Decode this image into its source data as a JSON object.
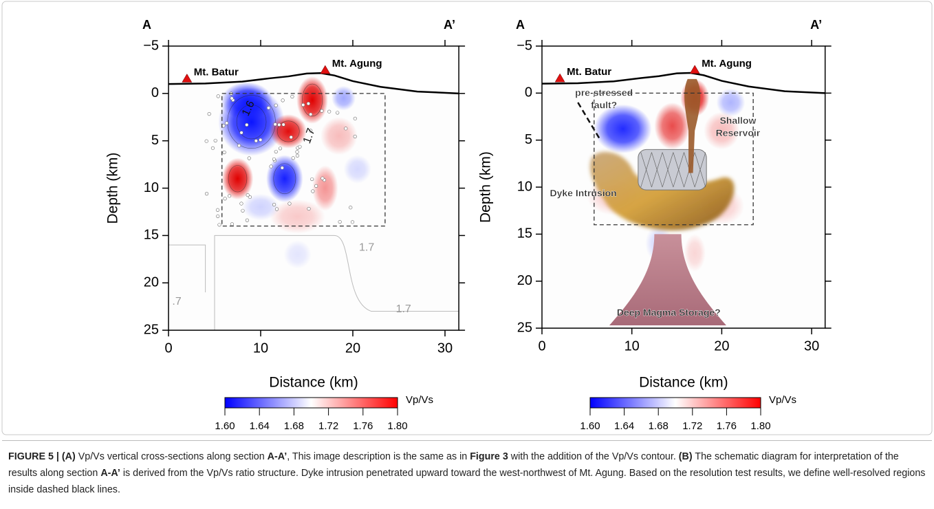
{
  "panels": [
    {
      "section_start": "A",
      "section_end": "A’",
      "y_label": "Depth (km)",
      "x_label": "Distance (km)",
      "xlim": [
        0,
        31.5
      ],
      "ylim": [
        -5,
        25
      ],
      "xticks": [
        0,
        10,
        20,
        30
      ],
      "yticks": [
        {
          "value": -5,
          "label": "−5"
        },
        0,
        5,
        10,
        15,
        20,
        25
      ],
      "volcanoes": [
        "Mt. Batur",
        "Mt. Agung"
      ],
      "contour_labels": [
        "1.6",
        "1.7",
        "1.7",
        "1.7",
        ".7"
      ],
      "annotations": [],
      "colorbar": {
        "label": "Vp/Vs",
        "ticks": [
          {
            "value": 1.6,
            "label": "1.60"
          },
          {
            "value": 1.64,
            "label": "1.64"
          },
          {
            "value": 1.68,
            "label": "1.68"
          },
          {
            "value": 1.72,
            "label": "1.72"
          },
          {
            "value": 1.76,
            "label": "1.76"
          },
          {
            "value": 1.8,
            "label": "1.80"
          }
        ]
      }
    },
    {
      "section_start": "A",
      "section_end": "A’",
      "y_label": "Depth (km)",
      "x_label": "Distance (km)",
      "xlim": [
        0,
        31.5
      ],
      "ylim": [
        -5,
        25
      ],
      "xticks": [
        0,
        10,
        20,
        30
      ],
      "yticks": [
        {
          "value": -5,
          "label": "−5"
        },
        0,
        5,
        10,
        15,
        20,
        25
      ],
      "volcanoes": [
        "Mt. Batur",
        "Mt. Agung"
      ],
      "contour_labels": [],
      "annotations": [
        {
          "lines": [
            "pre-stressed",
            "fault?"
          ]
        },
        {
          "lines": [
            "Shallow",
            "Reservoir"
          ]
        },
        {
          "lines": [
            "Dyke Intrusion"
          ]
        },
        {
          "lines": [
            "Deep Magma Storage?"
          ]
        }
      ],
      "colorbar": {
        "label": "Vp/Vs",
        "ticks": [
          {
            "value": 1.6,
            "label": "1.60"
          },
          {
            "value": 1.64,
            "label": "1.64"
          },
          {
            "value": 1.68,
            "label": "1.68"
          },
          {
            "value": 1.72,
            "label": "1.72"
          },
          {
            "value": 1.76,
            "label": "1.76"
          },
          {
            "value": 1.8,
            "label": "1.80"
          }
        ]
      }
    }
  ],
  "caption": [
    {
      "text": "FIGURE 5 | (A)",
      "bold": true
    },
    {
      "text": " Vp/Vs vertical cross-sections along section "
    },
    {
      "text": "A-A’",
      "bold": true
    },
    {
      "text": ", This image description is the same as in "
    },
    {
      "text": "Figure 3",
      "bold": true
    },
    {
      "text": " with the addition of the Vp/Vs contour. "
    },
    {
      "text": "(B)",
      "bold": true
    },
    {
      "text": " The schematic diagram for interpretation of the results along section "
    },
    {
      "text": "A-A’",
      "bold": true
    },
    {
      "text": " is derived from the Vp/Vs ratio structure. Dyke intrusion penetrated upward toward the west-northwest of Mt. Agung. Based on the resolution test results, we define well-resolved regions inside dashed black lines."
    }
  ]
}
